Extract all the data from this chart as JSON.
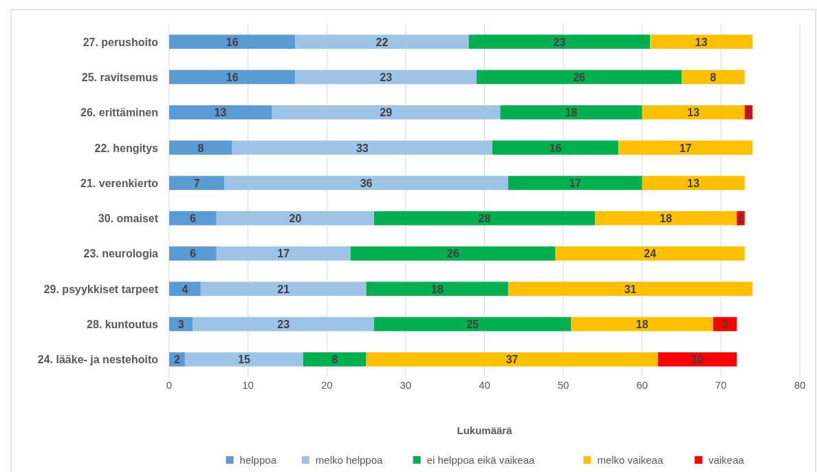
{
  "chart_data": {
    "type": "bar",
    "orientation": "horizontal",
    "stacked": true,
    "xlabel": "Lukumäärä",
    "categories": [
      "27. perushoito",
      "25. ravitsemus",
      "26. erittäminen",
      "22. hengitys",
      "21. verenkierto",
      "30. omaiset",
      "23. neurologia",
      "29. psyykkiset tarpeet",
      "28. kuntoutus",
      "24. lääke- ja nestehoito"
    ],
    "series": [
      {
        "name": "helppoa",
        "color": "#5b9bd5",
        "values": [
          16,
          16,
          13,
          8,
          7,
          6,
          6,
          4,
          3,
          2
        ]
      },
      {
        "name": "melko helppoa",
        "color": "#9dc3e6",
        "values": [
          22,
          23,
          29,
          33,
          36,
          20,
          17,
          21,
          23,
          15
        ]
      },
      {
        "name": "ei helppoa eikä vaikeaa",
        "color": "#00b050",
        "values": [
          23,
          26,
          18,
          16,
          17,
          28,
          26,
          18,
          25,
          8
        ]
      },
      {
        "name": "melko vaikeaa",
        "color": "#ffc000",
        "values": [
          13,
          8,
          13,
          17,
          13,
          18,
          24,
          31,
          18,
          37
        ]
      },
      {
        "name": "vaikeaa",
        "color": "#ff0000",
        "values": [
          null,
          null,
          1,
          null,
          null,
          1,
          null,
          null,
          3,
          10
        ]
      }
    ],
    "xlim": [
      0,
      80
    ],
    "xticks": [
      0,
      10,
      20,
      30,
      40,
      50,
      60,
      70,
      80
    ],
    "grid": "x",
    "legend": "bottom",
    "data_labels": true
  }
}
